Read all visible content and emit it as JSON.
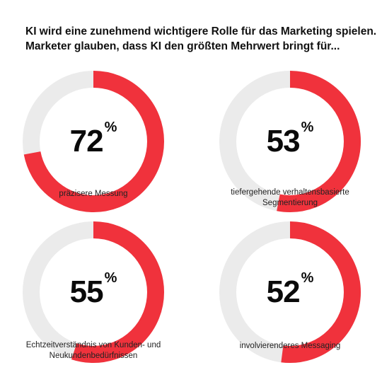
{
  "title_lines": [
    "KI wird eine zunehmend wichtigere Rolle für das Marketing spielen.",
    "Marketer glauben, dass KI den größten Mehrwert bringt für..."
  ],
  "colors": {
    "accent": "#f0323c",
    "track": "#ebebeb",
    "text": "#111111"
  },
  "chart_data": [
    {
      "type": "pie",
      "variant": "donut",
      "value": 72,
      "percent_symbol": "%",
      "value_text": "72",
      "label_lines": [
        "präzisere Messung"
      ]
    },
    {
      "type": "pie",
      "variant": "donut",
      "value": 53,
      "percent_symbol": "%",
      "value_text": "53",
      "label_lines": [
        "tiefergehende verhaltensbasierte",
        "Segmentierung"
      ]
    },
    {
      "type": "pie",
      "variant": "donut",
      "value": 55,
      "percent_symbol": "%",
      "value_text": "55",
      "label_lines": [
        "Echtzeitverständnis von Kunden- und",
        "Neukundenbedürfnissen"
      ]
    },
    {
      "type": "pie",
      "variant": "donut",
      "value": 52,
      "percent_symbol": "%",
      "value_text": "52",
      "label_lines": [
        "involvierenderes Messaging"
      ]
    }
  ]
}
